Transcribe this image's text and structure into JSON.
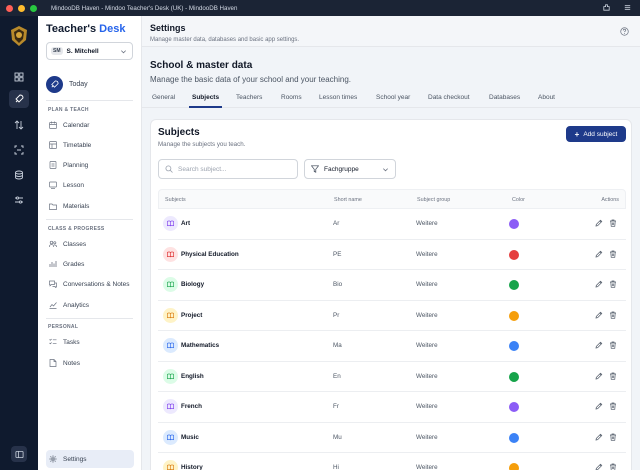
{
  "window": {
    "title": "MindooDB Haven - Mindoo Teacher's Desk (UK) - MindooDB Haven"
  },
  "app": {
    "brand_main": "Teacher's",
    "brand_accent": "Desk"
  },
  "user": {
    "initials": "SM",
    "name": "S. Mitchell"
  },
  "sidebar": {
    "today_label": "Today",
    "sections": {
      "plan": "PLAN & TEACH",
      "class": "CLASS & PROGRESS",
      "personal": "PERSONAL"
    },
    "items": {
      "calendar": "Calendar",
      "timetable": "Timetable",
      "planning": "Planning",
      "lesson": "Lesson",
      "materials": "Materials",
      "classes": "Classes",
      "grades": "Grades",
      "conversations": "Conversations & Notes",
      "analytics": "Analytics",
      "tasks": "Tasks",
      "notes": "Notes",
      "settings": "Settings"
    }
  },
  "header": {
    "title": "Settings",
    "subtitle": "Manage master data, databases and basic app settings."
  },
  "section": {
    "title": "School & master data",
    "subtitle": "Manage the basic data of your school and your teaching."
  },
  "tabs": [
    "General",
    "Subjects",
    "Teachers",
    "Rooms",
    "Lesson times",
    "School year",
    "Data checkout",
    "Databases",
    "About"
  ],
  "active_tab": "Subjects",
  "card": {
    "title": "Subjects",
    "subtitle": "Manage the subjects you teach.",
    "add_button": "Add subject",
    "search_placeholder": "Search subject...",
    "filter_label": "Fachgruppe"
  },
  "table": {
    "headers": {
      "subjects": "Subjects",
      "short": "Short name",
      "group": "Subject group",
      "color": "Color",
      "actions": "Actions"
    },
    "rows": [
      {
        "name": "Art",
        "short": "Ar",
        "group": "Weitere",
        "color": "#8b5cf6",
        "icon_bg": "#ede9fe",
        "icon_fg": "#7c3aed"
      },
      {
        "name": "Physical Education",
        "short": "PE",
        "group": "Weitere",
        "color": "#e53e3e",
        "icon_bg": "#fee2e2",
        "icon_fg": "#dc2626"
      },
      {
        "name": "Biology",
        "short": "Bio",
        "group": "Weitere",
        "color": "#16a34a",
        "icon_bg": "#dcfce7",
        "icon_fg": "#16a34a"
      },
      {
        "name": "Project",
        "short": "Pr",
        "group": "Weitere",
        "color": "#f59e0b",
        "icon_bg": "#fef3c7",
        "icon_fg": "#d97706"
      },
      {
        "name": "Mathematics",
        "short": "Ma",
        "group": "Weitere",
        "color": "#3b82f6",
        "icon_bg": "#dbeafe",
        "icon_fg": "#2563eb"
      },
      {
        "name": "English",
        "short": "En",
        "group": "Weitere",
        "color": "#16a34a",
        "icon_bg": "#dcfce7",
        "icon_fg": "#16a34a"
      },
      {
        "name": "French",
        "short": "Fr",
        "group": "Weitere",
        "color": "#8b5cf6",
        "icon_bg": "#ede9fe",
        "icon_fg": "#7c3aed"
      },
      {
        "name": "Music",
        "short": "Mu",
        "group": "Weitere",
        "color": "#3b82f6",
        "icon_bg": "#dbeafe",
        "icon_fg": "#2563eb"
      },
      {
        "name": "History",
        "short": "Hi",
        "group": "Weitere",
        "color": "#f59e0b",
        "icon_bg": "#fef3c7",
        "icon_fg": "#d97706"
      }
    ]
  }
}
